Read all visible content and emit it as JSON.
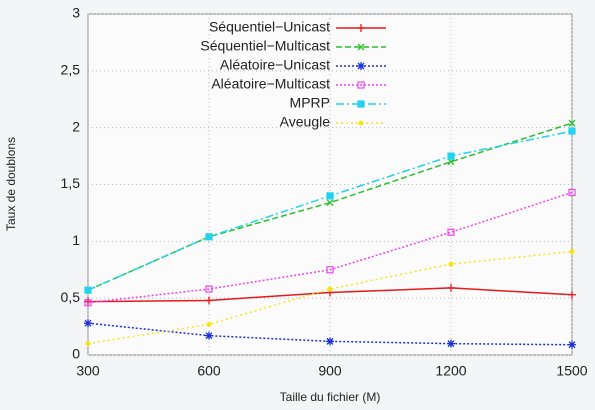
{
  "chart_data": {
    "type": "line",
    "x_label": "Taille du fichier (M)",
    "y_label": "Taux de doublons",
    "x": [
      300,
      600,
      900,
      1200,
      1500
    ],
    "xlim": [
      300,
      1500
    ],
    "xticks": [
      300,
      600,
      900,
      1200,
      1500
    ],
    "ylim": [
      0,
      3
    ],
    "yticks": [
      0,
      {
        "value": 0.5,
        "label": "0,5"
      },
      1,
      {
        "value": 1.5,
        "label": "1,5"
      },
      2,
      {
        "value": 2.5,
        "label": "2,5"
      },
      3
    ],
    "grid": true,
    "legend": "top-left",
    "series": [
      {
        "name": "Séquentiel−Unicast",
        "color": "#e41a1c",
        "values": [
          0.47,
          0.48,
          0.55,
          0.59,
          0.53
        ]
      },
      {
        "name": "Séquentiel−Multicast",
        "color": "#2bbf2b",
        "values": [
          0.57,
          1.04,
          1.34,
          1.7,
          2.04
        ]
      },
      {
        "name": "Aléatoire−Unicast",
        "color": "#1a2fd6",
        "values": [
          0.28,
          0.17,
          0.12,
          0.1,
          0.09
        ]
      },
      {
        "name": "Aléatoire−Multicast",
        "color": "#ee44ee",
        "values": [
          0.46,
          0.58,
          0.75,
          1.08,
          1.43
        ]
      },
      {
        "name": "MPRP",
        "color": "#22d3ee",
        "values": [
          0.57,
          1.04,
          1.4,
          1.75,
          1.97
        ]
      },
      {
        "name": "Aveugle",
        "color": "#f5e516",
        "values": [
          0.1,
          0.27,
          0.58,
          0.8,
          0.91
        ]
      }
    ]
  }
}
